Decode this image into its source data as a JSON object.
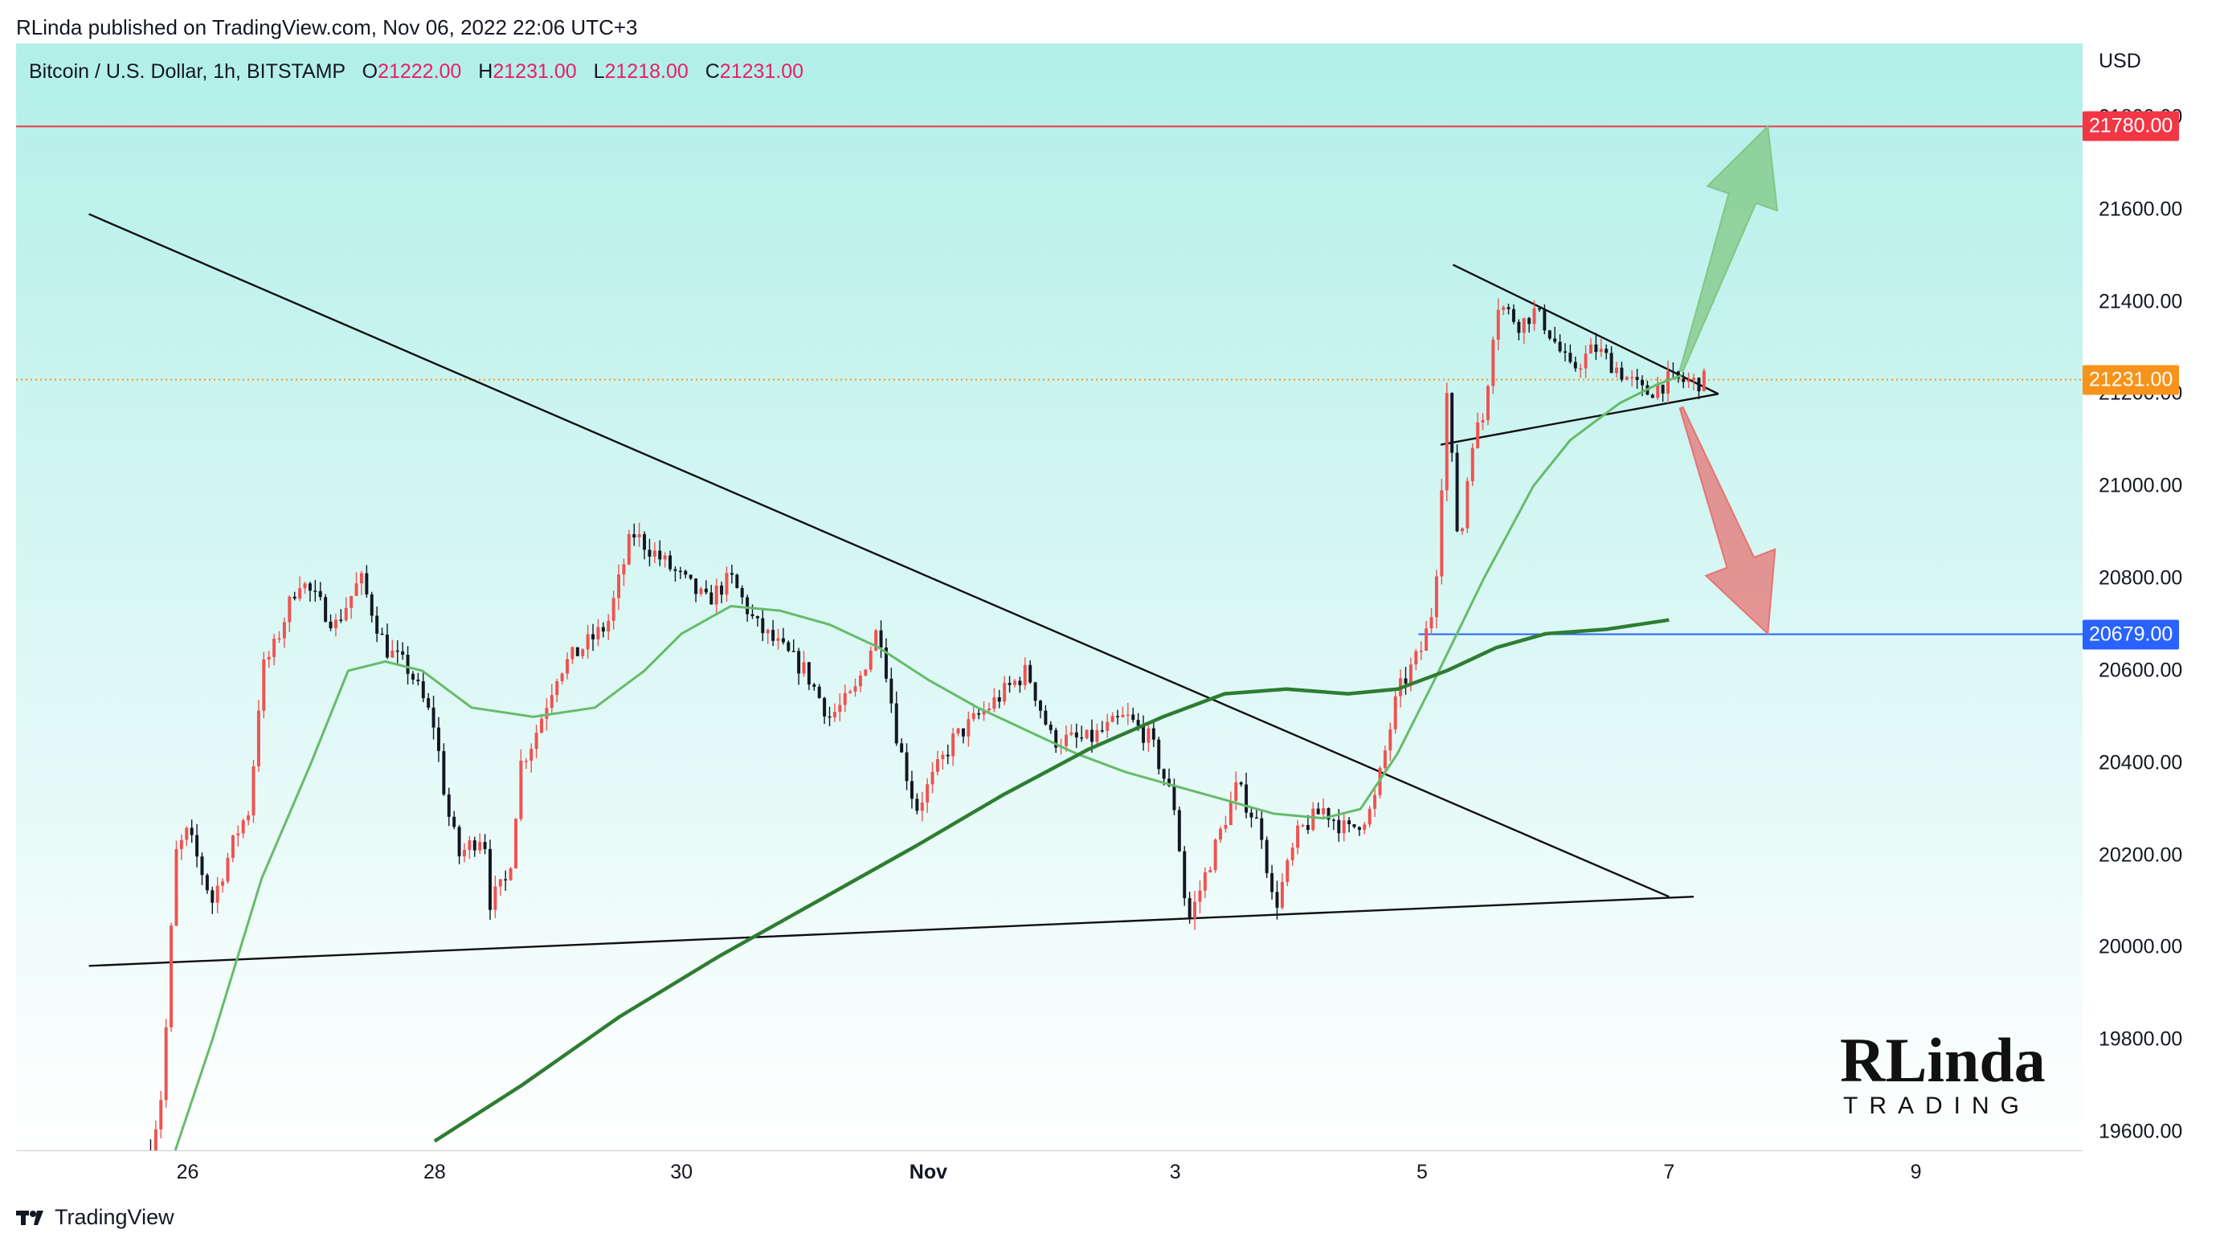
{
  "header": {
    "publisher_line": "RLinda published on TradingView.com, Nov 06, 2022 22:06 UTC+3"
  },
  "symbol": {
    "name": "Bitcoin / U.S. Dollar, 1h, BITSTAMP",
    "open_label": "O",
    "open_value": "21222.00",
    "high_label": "H",
    "high_value": "21231.00",
    "low_label": "L",
    "low_value": "21218.00",
    "close_label": "C",
    "close_value": "21231.00"
  },
  "currency": "USD",
  "footer": {
    "brand": "TradingView"
  },
  "logo": {
    "text_top": "RLinda",
    "text_bottom": "TRADING"
  },
  "colors": {
    "background_top": "#b2efe9",
    "background_bottom": "#ffffff",
    "up": "#ef5350",
    "down": "#131722",
    "ma_fast": "#66bb6a",
    "ma_slow": "#2e7d32",
    "resistance": "#f23645",
    "support": "#2962ff",
    "last_price": "#f7931a",
    "arrow_up": "#81c784",
    "arrow_down": "#e57373"
  },
  "chart_data": {
    "type": "candlestick",
    "title": "Bitcoin / U.S. Dollar, 1h, BITSTAMP",
    "ylabel": "USD",
    "ylim": [
      19560,
      21960
    ],
    "y_ticks": [
      "19600.00",
      "19800.00",
      "20000.00",
      "20200.00",
      "20400.00",
      "20600.00",
      "20800.00",
      "21000.00",
      "21200.00",
      "21400.00",
      "21600.00",
      "21800.00"
    ],
    "x_ticks": [
      {
        "label": "26",
        "day": 26
      },
      {
        "label": "28",
        "day": 28
      },
      {
        "label": "30",
        "day": 30
      },
      {
        "label": "Nov",
        "day": 32
      },
      {
        "label": "3",
        "day": 34
      },
      {
        "label": "5",
        "day": 36
      },
      {
        "label": "7",
        "day": 38
      },
      {
        "label": "9",
        "day": 40
      }
    ],
    "x_range_days": [
      24.61,
      41.35
    ],
    "price_path": [
      [
        25.7,
        19560
      ],
      [
        25.8,
        19700
      ],
      [
        25.9,
        20200
      ],
      [
        26.0,
        20250
      ],
      [
        26.2,
        20100
      ],
      [
        26.4,
        20250
      ],
      [
        26.5,
        20300
      ],
      [
        26.6,
        20600
      ],
      [
        26.7,
        20650
      ],
      [
        26.9,
        20800
      ],
      [
        27.2,
        20700
      ],
      [
        27.4,
        20800
      ],
      [
        27.6,
        20650
      ],
      [
        27.8,
        20600
      ],
      [
        28.0,
        20480
      ],
      [
        28.1,
        20300
      ],
      [
        28.2,
        20200
      ],
      [
        28.4,
        20250
      ],
      [
        28.45,
        20100
      ],
      [
        28.6,
        20150
      ],
      [
        28.7,
        20400
      ],
      [
        28.8,
        20450
      ],
      [
        29.0,
        20600
      ],
      [
        29.2,
        20650
      ],
      [
        29.4,
        20700
      ],
      [
        29.6,
        20900
      ],
      [
        29.8,
        20850
      ],
      [
        30.0,
        20800
      ],
      [
        30.2,
        20750
      ],
      [
        30.4,
        20800
      ],
      [
        30.6,
        20700
      ],
      [
        30.8,
        20650
      ],
      [
        31.0,
        20600
      ],
      [
        31.2,
        20500
      ],
      [
        31.4,
        20550
      ],
      [
        31.6,
        20700
      ],
      [
        31.75,
        20450
      ],
      [
        31.9,
        20300
      ],
      [
        32.2,
        20450
      ],
      [
        32.4,
        20500
      ],
      [
        32.6,
        20550
      ],
      [
        32.8,
        20600
      ],
      [
        33.0,
        20450
      ],
      [
        33.3,
        20450
      ],
      [
        33.6,
        20500
      ],
      [
        33.8,
        20450
      ],
      [
        34.0,
        20300
      ],
      [
        34.1,
        20050
      ],
      [
        34.3,
        20200
      ],
      [
        34.5,
        20350
      ],
      [
        34.7,
        20250
      ],
      [
        34.8,
        20080
      ],
      [
        35.0,
        20250
      ],
      [
        35.2,
        20300
      ],
      [
        35.4,
        20250
      ],
      [
        35.6,
        20300
      ],
      [
        35.8,
        20550
      ],
      [
        35.9,
        20600
      ],
      [
        36.0,
        20650
      ],
      [
        36.1,
        20750
      ],
      [
        36.2,
        21200
      ],
      [
        36.3,
        20850
      ],
      [
        36.4,
        21100
      ],
      [
        36.5,
        21150
      ],
      [
        36.6,
        21400
      ],
      [
        36.8,
        21350
      ],
      [
        36.9,
        21380
      ],
      [
        37.0,
        21350
      ],
      [
        37.2,
        21250
      ],
      [
        37.4,
        21300
      ],
      [
        37.6,
        21250
      ],
      [
        37.8,
        21200
      ],
      [
        38.0,
        21230
      ],
      [
        38.2,
        21225
      ],
      [
        38.3,
        21230
      ]
    ],
    "ma_fast": [
      [
        25.9,
        19560
      ],
      [
        26.2,
        19800
      ],
      [
        26.6,
        20150
      ],
      [
        27.0,
        20400
      ],
      [
        27.3,
        20600
      ],
      [
        27.6,
        20620
      ],
      [
        27.9,
        20600
      ],
      [
        28.3,
        20520
      ],
      [
        28.8,
        20500
      ],
      [
        29.3,
        20520
      ],
      [
        29.7,
        20600
      ],
      [
        30.0,
        20680
      ],
      [
        30.4,
        20740
      ],
      [
        30.8,
        20730
      ],
      [
        31.2,
        20700
      ],
      [
        31.6,
        20650
      ],
      [
        32.0,
        20580
      ],
      [
        32.4,
        20520
      ],
      [
        32.8,
        20470
      ],
      [
        33.2,
        20420
      ],
      [
        33.6,
        20380
      ],
      [
        34.0,
        20350
      ],
      [
        34.4,
        20320
      ],
      [
        34.8,
        20290
      ],
      [
        35.2,
        20280
      ],
      [
        35.5,
        20300
      ],
      [
        35.8,
        20420
      ],
      [
        36.1,
        20580
      ],
      [
        36.5,
        20800
      ],
      [
        36.9,
        21000
      ],
      [
        37.2,
        21100
      ],
      [
        37.6,
        21180
      ],
      [
        37.9,
        21220
      ],
      [
        38.1,
        21240
      ]
    ],
    "ma_slow": [
      [
        28.0,
        19580
      ],
      [
        28.7,
        19700
      ],
      [
        29.5,
        19850
      ],
      [
        30.3,
        19980
      ],
      [
        31.1,
        20100
      ],
      [
        31.9,
        20220
      ],
      [
        32.6,
        20330
      ],
      [
        33.3,
        20430
      ],
      [
        33.9,
        20500
      ],
      [
        34.4,
        20550
      ],
      [
        34.9,
        20560
      ],
      [
        35.4,
        20550
      ],
      [
        35.8,
        20560
      ],
      [
        36.2,
        20600
      ],
      [
        36.6,
        20650
      ],
      [
        37.0,
        20680
      ],
      [
        37.5,
        20690
      ],
      [
        38.0,
        20710
      ]
    ],
    "levels": [
      {
        "name": "resistance",
        "value": 21780,
        "label": "21780.00"
      },
      {
        "name": "last_price",
        "value": 21231,
        "label": "21231.00"
      },
      {
        "name": "support",
        "value": 20679,
        "label": "20679.00",
        "from_day": 35.97
      }
    ],
    "trendlines": [
      {
        "name": "descending-trendline",
        "points": [
          [
            25.2,
            21590
          ],
          [
            38.0,
            20110
          ]
        ]
      },
      {
        "name": "ascending-trendline",
        "points": [
          [
            25.2,
            19960
          ],
          [
            38.2,
            20110
          ]
        ]
      },
      {
        "name": "pennant-upper",
        "points": [
          [
            36.25,
            21480
          ],
          [
            38.4,
            21200
          ]
        ]
      },
      {
        "name": "pennant-lower",
        "points": [
          [
            36.15,
            21090
          ],
          [
            38.4,
            21200
          ]
        ]
      }
    ],
    "arrows": [
      {
        "name": "bullish-arrow",
        "from": [
          38.1,
          21250
        ],
        "to": [
          38.8,
          21780
        ]
      },
      {
        "name": "bearish-arrow",
        "from": [
          38.1,
          21170
        ],
        "to": [
          38.8,
          20680
        ]
      }
    ]
  }
}
